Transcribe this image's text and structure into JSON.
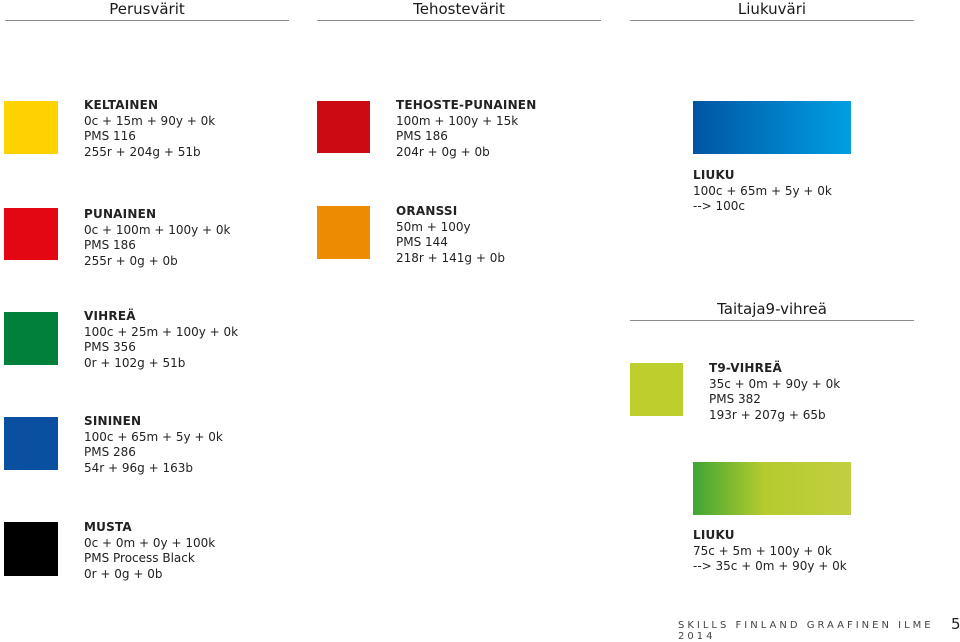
{
  "headings": {
    "perus": "Perusvärit",
    "tehoste": "Tehostevärit",
    "liuku": "Liukuväri",
    "taitaja": "Taitaja9-vihreä"
  },
  "colors": {
    "yellow": "#FFCC33",
    "red": "#FF0000",
    "tehoste_red": "#CC0000",
    "orange": "#DA8D00",
    "green": "#006633",
    "blue": "#3660A3",
    "black": "#000000",
    "t9_green": "#C1CF41",
    "gradient_blue_start": "#0055A3",
    "gradient_blue_end": "#009FE3",
    "gradient_green_start": "#3FA535",
    "gradient_green_end": "#C1CF41"
  },
  "swatches": {
    "keltainen": {
      "name": "KELTAINEN",
      "lines": [
        "0c + 15m + 90y + 0k",
        "PMS 116",
        "255r + 204g + 51b"
      ]
    },
    "punainen": {
      "name": "PUNAINEN",
      "lines": [
        "0c + 100m + 100y + 0k",
        "PMS 186",
        "255r + 0g + 0b"
      ]
    },
    "vihrea": {
      "name": "VIHREÄ",
      "lines": [
        "100c + 25m + 100y + 0k",
        "PMS 356",
        "0r + 102g + 51b"
      ]
    },
    "sininen": {
      "name": "SININEN",
      "lines": [
        "100c + 65m + 5y + 0k",
        "PMS 286",
        "54r + 96g + 163b"
      ]
    },
    "musta": {
      "name": "MUSTA",
      "lines": [
        "0c + 0m + 0y + 100k",
        "PMS Process Black",
        "0r + 0g + 0b"
      ]
    },
    "tehoste_punainen": {
      "name": "TEHOSTE-PUNAINEN",
      "lines": [
        "100m + 100y + 15k",
        "PMS 186",
        "204r + 0g + 0b"
      ]
    },
    "oranssi": {
      "name": "ORANSSI",
      "lines": [
        "50m + 100y",
        "PMS 144",
        "218r + 141g + 0b"
      ]
    },
    "liuku_blue": {
      "name": "LIUKU",
      "lines": [
        "100c + 65m + 5y + 0k",
        "--> 100c"
      ]
    },
    "t9_vihrea": {
      "name": "T9-VIHREÄ",
      "lines": [
        "35c + 0m + 90y + 0k",
        "PMS 382",
        "193r + 207g + 65b"
      ]
    },
    "liuku_green": {
      "name": "LIUKU",
      "lines": [
        "75c + 5m + 100y + 0k",
        "--> 35c + 0m + 90y + 0k"
      ]
    }
  },
  "footer": {
    "text": "SKILLS FINLAND GRAAFINEN ILME 2014",
    "page": "5"
  }
}
